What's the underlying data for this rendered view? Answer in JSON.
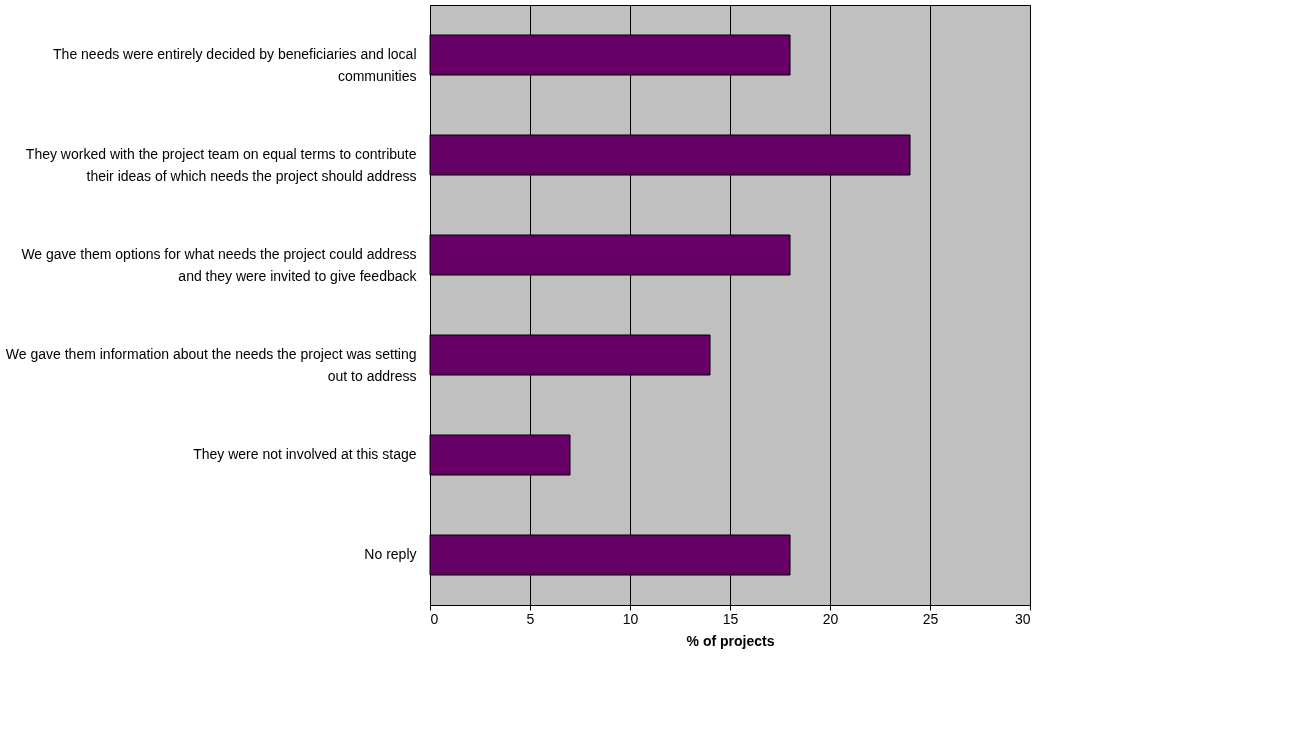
{
  "chart_data": {
    "type": "bar",
    "orientation": "horizontal",
    "categories": [
      "The needs were entirely decided by beneficiaries and local communities",
      "They worked with the project team on equal terms to contribute their ideas of which needs the project should address",
      "We gave them options for what needs the project could address and they were invited to give feedback",
      "We gave them information about the needs the project was setting out to address",
      "They were not involved at this stage",
      "No reply"
    ],
    "values": [
      18,
      24,
      18,
      14,
      7,
      18
    ],
    "color": "#660066",
    "xlabel": "% of projects",
    "xlim": [
      0,
      30
    ],
    "xticks": [
      0,
      5,
      10,
      15,
      20,
      25,
      30
    ],
    "grid": "x"
  }
}
